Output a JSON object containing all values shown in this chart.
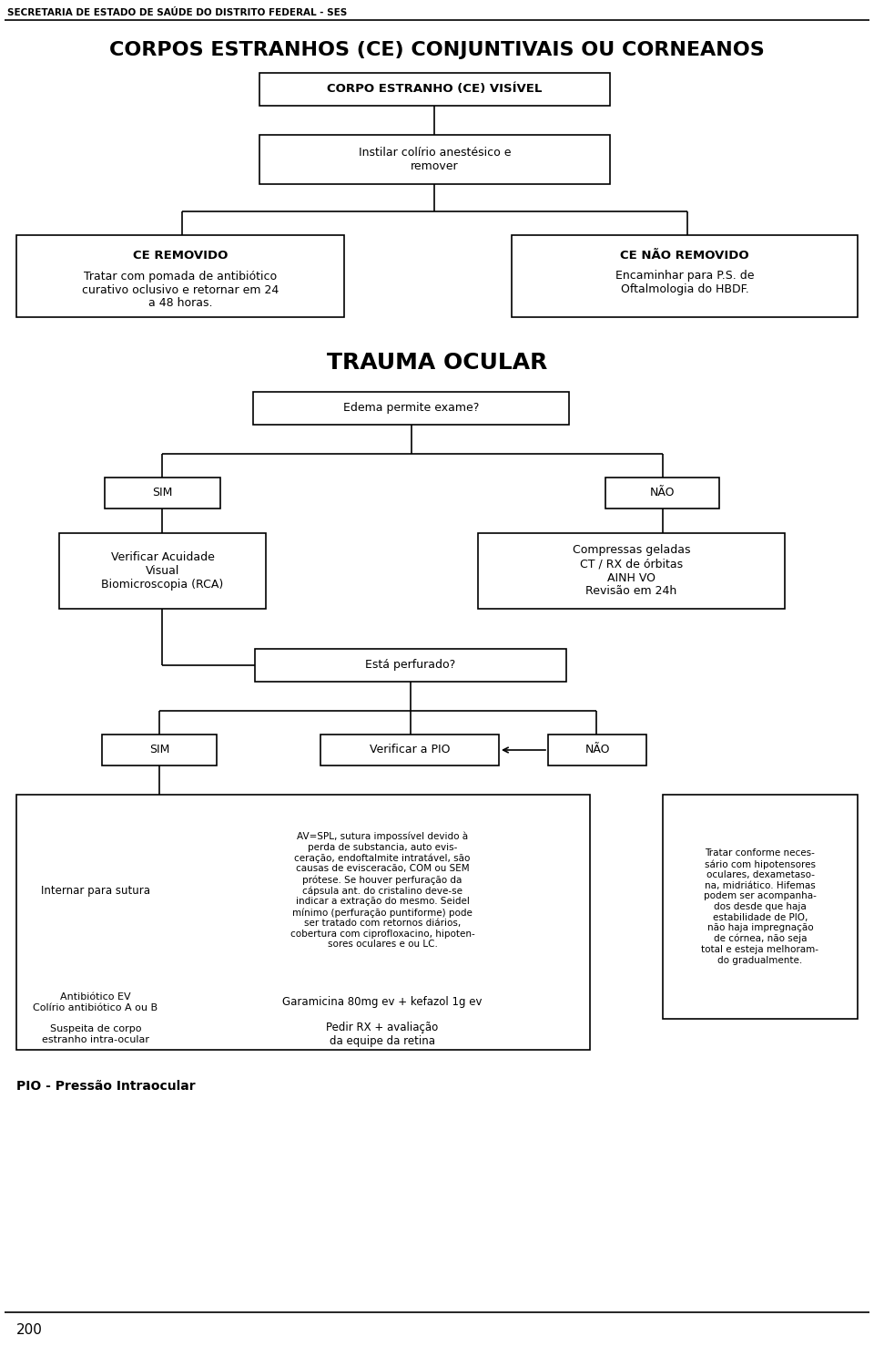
{
  "page_width": 9.6,
  "page_height": 14.77,
  "bg_color": "#ffffff",
  "header_text": "SECRETARIA DE ESTADO DE SAÚDE DO DISTRITO FEDERAL - SES",
  "title1": "CORPOS ESTRANHOS (CE) CONJUNTIVAIS OU CORNEANOS",
  "title2": "TRAUMA OCULAR",
  "footer_label": "PIO - Pressão Intraocular",
  "page_number": "200",
  "mid_text": "AV=SPL, sutura impossível devido à\nperda de substancia, auto evis-\nceração, endoftalmite intratável, são\ncausas de evisceracão, COM ou SEM\nprótese. Se houver perfuração da\ncápsula ant. do cristalino deve-se\nindicar a extração do mesmo. Seidel\nmínimo (perfuração puntiforme) pode\nser tratado com retornos diários,\ncobertura com ciprofloxacino, hipoten-\nsores oculares e ou LC.",
  "right_text": "Tratar conforme neces-\nsário com hipotensores\noculares, dexametaso-\nna, midriático. Hifemas\npodem ser acompanha-\ndos desde que haja\nestabilidade de PIO,\nnão haja impregnação\nde córnea, não seja\ntotal e esteja melhoram-\ndo gradualmente."
}
